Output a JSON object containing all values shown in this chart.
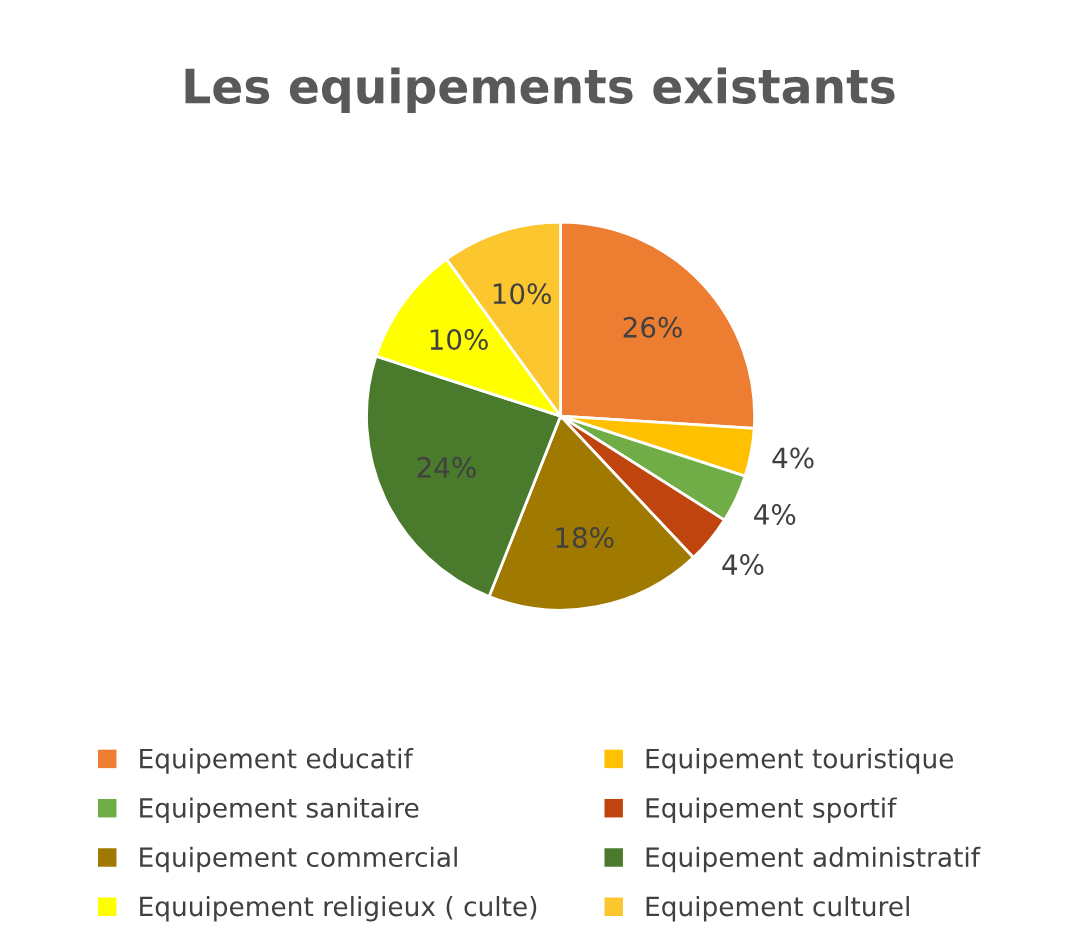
{
  "chart_data": {
    "type": "pie",
    "title": "Les equipements existants",
    "categories": [
      "Equipement educatif",
      "Equipement touristique",
      "Equipement sanitaire",
      "Equipement sportif",
      "Equipement commercial",
      "Equipement administratif",
      "Equuipement religieux ( culte)",
      "Equipement culturel"
    ],
    "values": [
      26,
      4,
      4,
      4,
      18,
      24,
      10,
      10
    ],
    "colors": [
      "#ed7d31",
      "#ffc000",
      "#70ad47",
      "#c0440e",
      "#a07a00",
      "#4a7a2c",
      "#ffff00",
      "#fcc62f"
    ],
    "value_labels": [
      "26%",
      "4%",
      "4%",
      "4%",
      "18%",
      "24%",
      "10%",
      "10%"
    ],
    "legend": "bottom"
  }
}
